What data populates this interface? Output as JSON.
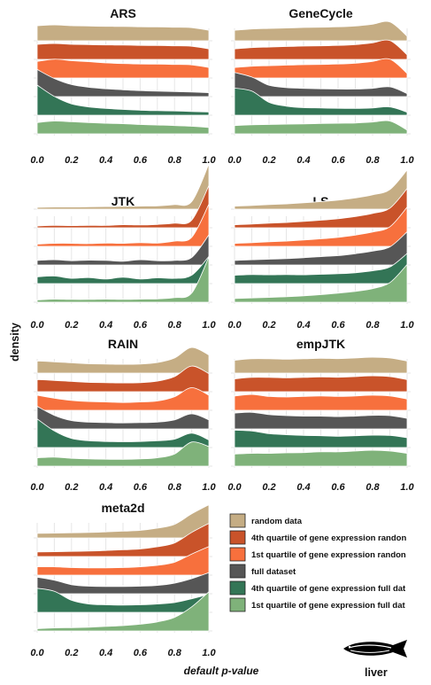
{
  "figure": {
    "ylabel": "density",
    "xlabel": "default p-value",
    "tissue": "liver",
    "icon": "fish-icon"
  },
  "legend": {
    "items": [
      {
        "label": "random data",
        "color": "#c5ad84"
      },
      {
        "label": "4th quartile of gene expression randon",
        "color": "#c9532a"
      },
      {
        "label": "1st quartile of gene expression randon",
        "color": "#f7703d"
      },
      {
        "label": "full dataset",
        "color": "#565656"
      },
      {
        "label": "4th quartile of gene expression full dat",
        "color": "#337556"
      },
      {
        "label": "1st quartile of gene expression full dat",
        "color": "#7fb27a"
      }
    ]
  },
  "chart_data": [
    {
      "type": "area",
      "title": "ARS",
      "x": [
        0,
        0.1,
        0.2,
        0.3,
        0.4,
        0.5,
        0.6,
        0.7,
        0.8,
        0.9,
        1.0
      ],
      "xticks": [
        "0.0",
        "0.2",
        "0.4",
        "0.6",
        "0.8",
        "1.0"
      ],
      "xlim": [
        0,
        1
      ],
      "series": [
        {
          "name": "random data",
          "values": [
            1.0,
            1.05,
            1.0,
            0.98,
            0.96,
            0.95,
            0.93,
            0.92,
            0.9,
            0.87,
            0.7
          ]
        },
        {
          "name": "4th quartile of gene expression randon",
          "values": [
            1.0,
            1.05,
            1.0,
            0.98,
            0.96,
            0.95,
            0.93,
            0.92,
            0.9,
            0.87,
            0.7
          ]
        },
        {
          "name": "1st quartile of gene expression randon",
          "values": [
            1.1,
            1.25,
            1.15,
            1.08,
            1.0,
            0.96,
            0.93,
            0.92,
            0.9,
            0.87,
            0.7
          ]
        },
        {
          "name": "full dataset",
          "values": [
            1.8,
            1.2,
            0.8,
            0.62,
            0.52,
            0.45,
            0.4,
            0.36,
            0.33,
            0.3,
            0.26
          ]
        },
        {
          "name": "4th quartile of gene expression full dat",
          "values": [
            2.0,
            1.25,
            0.75,
            0.55,
            0.45,
            0.38,
            0.33,
            0.3,
            0.28,
            0.25,
            0.22
          ]
        },
        {
          "name": "1st quartile of gene expression full dat",
          "values": [
            0.75,
            0.85,
            0.8,
            0.75,
            0.7,
            0.67,
            0.62,
            0.58,
            0.55,
            0.5,
            0.42
          ]
        }
      ]
    },
    {
      "type": "area",
      "title": "GeneCycle",
      "x": [
        0,
        0.1,
        0.2,
        0.3,
        0.4,
        0.5,
        0.6,
        0.7,
        0.8,
        0.9,
        1.0
      ],
      "xticks": [
        "0.0",
        "0.2",
        "0.4",
        "0.6",
        "0.8",
        "1.0"
      ],
      "xlim": [
        0,
        1
      ],
      "series": [
        {
          "name": "random data",
          "values": [
            0.7,
            0.78,
            0.82,
            0.85,
            0.88,
            0.9,
            0.93,
            0.98,
            1.1,
            1.25,
            0.3
          ]
        },
        {
          "name": "4th quartile of gene expression randon",
          "values": [
            0.7,
            0.78,
            0.82,
            0.85,
            0.88,
            0.9,
            0.93,
            0.98,
            1.1,
            1.25,
            0.3
          ]
        },
        {
          "name": "1st quartile of gene expression randon",
          "values": [
            0.7,
            0.78,
            0.82,
            0.85,
            0.88,
            0.9,
            0.93,
            0.98,
            1.1,
            1.25,
            0.3
          ]
        },
        {
          "name": "full dataset",
          "values": [
            1.6,
            1.3,
            0.75,
            0.6,
            0.55,
            0.52,
            0.5,
            0.5,
            0.55,
            0.65,
            0.2
          ]
        },
        {
          "name": "4th quartile of gene expression full dat",
          "values": [
            1.8,
            1.6,
            0.85,
            0.6,
            0.5,
            0.48,
            0.46,
            0.45,
            0.48,
            0.55,
            0.2
          ]
        },
        {
          "name": "1st quartile of gene expression full dat",
          "values": [
            0.55,
            0.6,
            0.62,
            0.64,
            0.66,
            0.68,
            0.7,
            0.72,
            0.78,
            0.85,
            0.25
          ]
        }
      ]
    },
    {
      "type": "area",
      "title": "JTK",
      "x": [
        0,
        0.1,
        0.2,
        0.3,
        0.4,
        0.5,
        0.6,
        0.7,
        0.8,
        0.9,
        1.0
      ],
      "xticks": [
        "0.0",
        "0.2",
        "0.4",
        "0.6",
        "0.8",
        "1.0"
      ],
      "xlim": [
        0,
        1
      ],
      "series": [
        {
          "name": "random data",
          "values": [
            0.12,
            0.14,
            0.14,
            0.16,
            0.17,
            0.18,
            0.2,
            0.22,
            0.3,
            0.5,
            3.0
          ]
        },
        {
          "name": "4th quartile of gene expression randon",
          "values": [
            0.12,
            0.15,
            0.14,
            0.16,
            0.15,
            0.2,
            0.18,
            0.22,
            0.3,
            0.5,
            2.8
          ]
        },
        {
          "name": "1st quartile of gene expression randon",
          "values": [
            0.15,
            0.2,
            0.2,
            0.18,
            0.22,
            0.2,
            0.25,
            0.22,
            0.35,
            0.6,
            2.8
          ]
        },
        {
          "name": "full dataset",
          "values": [
            0.3,
            0.35,
            0.28,
            0.32,
            0.3,
            0.25,
            0.35,
            0.28,
            0.3,
            0.5,
            2.0
          ]
        },
        {
          "name": "4th quartile of gene expression full dat",
          "values": [
            0.45,
            0.5,
            0.35,
            0.4,
            0.3,
            0.42,
            0.3,
            0.38,
            0.35,
            0.55,
            1.8
          ]
        },
        {
          "name": "1st quartile of gene expression full dat",
          "values": [
            0.15,
            0.2,
            0.18,
            0.18,
            0.2,
            0.18,
            0.2,
            0.22,
            0.3,
            0.6,
            3.0
          ]
        }
      ]
    },
    {
      "type": "area",
      "title": "LS",
      "x": [
        0,
        0.1,
        0.2,
        0.3,
        0.4,
        0.5,
        0.6,
        0.7,
        0.8,
        0.9,
        1.0
      ],
      "xticks": [
        "0.0",
        "0.2",
        "0.4",
        "0.6",
        "0.8",
        "1.0"
      ],
      "xlim": [
        0,
        1
      ],
      "series": [
        {
          "name": "random data",
          "values": [
            0.2,
            0.25,
            0.3,
            0.35,
            0.42,
            0.5,
            0.6,
            0.75,
            0.95,
            1.3,
            2.6
          ]
        },
        {
          "name": "4th quartile of gene expression randon",
          "values": [
            0.2,
            0.25,
            0.3,
            0.35,
            0.42,
            0.5,
            0.6,
            0.75,
            0.95,
            1.3,
            2.6
          ]
        },
        {
          "name": "1st quartile of gene expression randon",
          "values": [
            0.2,
            0.25,
            0.3,
            0.35,
            0.42,
            0.5,
            0.6,
            0.75,
            0.95,
            1.3,
            2.6
          ]
        },
        {
          "name": "full dataset",
          "values": [
            0.3,
            0.35,
            0.38,
            0.42,
            0.48,
            0.55,
            0.62,
            0.75,
            0.92,
            1.2,
            2.2
          ]
        },
        {
          "name": "4th quartile of gene expression full dat",
          "values": [
            0.55,
            0.6,
            0.58,
            0.6,
            0.58,
            0.62,
            0.65,
            0.72,
            0.85,
            1.1,
            2.0
          ]
        },
        {
          "name": "1st quartile of gene expression full dat",
          "values": [
            0.25,
            0.28,
            0.32,
            0.36,
            0.42,
            0.5,
            0.6,
            0.72,
            0.9,
            1.3,
            2.5
          ]
        }
      ]
    },
    {
      "type": "area",
      "title": "RAIN",
      "x": [
        0,
        0.1,
        0.2,
        0.3,
        0.4,
        0.5,
        0.6,
        0.7,
        0.8,
        0.9,
        1.0
      ],
      "xticks": [
        "0.0",
        "0.2",
        "0.4",
        "0.6",
        "0.8",
        "1.0"
      ],
      "xlim": [
        0,
        1
      ],
      "series": [
        {
          "name": "random data",
          "values": [
            0.8,
            0.75,
            0.68,
            0.62,
            0.6,
            0.58,
            0.6,
            0.7,
            1.0,
            1.7,
            1.2
          ]
        },
        {
          "name": "4th quartile of gene expression randon",
          "values": [
            0.8,
            0.75,
            0.68,
            0.62,
            0.6,
            0.58,
            0.6,
            0.7,
            1.0,
            1.7,
            1.2
          ]
        },
        {
          "name": "1st quartile of gene expression randon",
          "values": [
            1.0,
            0.8,
            0.65,
            0.58,
            0.55,
            0.52,
            0.55,
            0.62,
            0.9,
            1.5,
            1.0
          ]
        },
        {
          "name": "full dataset",
          "values": [
            1.5,
            0.9,
            0.55,
            0.45,
            0.42,
            0.4,
            0.42,
            0.45,
            0.6,
            1.0,
            0.6
          ]
        },
        {
          "name": "4th quartile of gene expression full dat",
          "values": [
            1.9,
            1.1,
            0.6,
            0.45,
            0.4,
            0.38,
            0.4,
            0.45,
            0.55,
            0.95,
            0.5
          ]
        },
        {
          "name": "1st quartile of gene expression full dat",
          "values": [
            0.55,
            0.6,
            0.52,
            0.48,
            0.46,
            0.45,
            0.48,
            0.55,
            0.8,
            1.6,
            1.3
          ]
        }
      ]
    },
    {
      "type": "area",
      "title": "empJTK",
      "x": [
        0,
        0.1,
        0.2,
        0.3,
        0.4,
        0.5,
        0.6,
        0.7,
        0.8,
        0.9,
        1.0
      ],
      "xticks": [
        "0.0",
        "0.2",
        "0.4",
        "0.6",
        "0.8",
        "1.0"
      ],
      "xlim": [
        0,
        1
      ],
      "series": [
        {
          "name": "random data",
          "values": [
            0.85,
            0.95,
            0.95,
            0.92,
            0.95,
            0.98,
            0.96,
            1.0,
            1.05,
            1.0,
            0.8
          ]
        },
        {
          "name": "4th quartile of gene expression randon",
          "values": [
            0.85,
            0.95,
            0.95,
            0.92,
            0.95,
            0.98,
            0.96,
            1.0,
            1.05,
            1.0,
            0.8
          ]
        },
        {
          "name": "1st quartile of gene expression randon",
          "values": [
            0.95,
            1.05,
            0.92,
            0.88,
            0.92,
            0.95,
            0.92,
            0.95,
            1.0,
            0.95,
            0.75
          ]
        },
        {
          "name": "full dataset",
          "values": [
            1.05,
            1.1,
            0.95,
            0.88,
            0.85,
            0.85,
            0.82,
            0.85,
            0.9,
            0.88,
            0.7
          ]
        },
        {
          "name": "4th quartile of gene expression full dat",
          "values": [
            1.15,
            1.1,
            0.92,
            0.85,
            0.8,
            0.78,
            0.75,
            0.78,
            0.82,
            0.8,
            0.65
          ]
        },
        {
          "name": "1st quartile of gene expression full dat",
          "values": [
            0.8,
            0.85,
            0.85,
            0.88,
            0.9,
            0.95,
            0.95,
            1.0,
            1.05,
            1.0,
            0.85
          ]
        }
      ]
    },
    {
      "type": "area",
      "title": "meta2d",
      "x": [
        0,
        0.1,
        0.2,
        0.3,
        0.4,
        0.5,
        0.6,
        0.7,
        0.8,
        0.9,
        1.0
      ],
      "xticks": [
        "0.0",
        "0.2",
        "0.4",
        "0.6",
        "0.8",
        "1.0"
      ],
      "xlim": [
        0,
        1
      ],
      "series": [
        {
          "name": "random data",
          "values": [
            0.3,
            0.32,
            0.34,
            0.36,
            0.4,
            0.45,
            0.5,
            0.65,
            0.9,
            1.6,
            2.2
          ]
        },
        {
          "name": "4th quartile of gene expression randon",
          "values": [
            0.3,
            0.32,
            0.34,
            0.36,
            0.4,
            0.45,
            0.5,
            0.65,
            0.9,
            1.6,
            2.2
          ]
        },
        {
          "name": "1st quartile of gene expression randon",
          "values": [
            0.55,
            0.55,
            0.5,
            0.48,
            0.48,
            0.5,
            0.55,
            0.65,
            0.85,
            1.4,
            1.9
          ]
        },
        {
          "name": "full dataset",
          "values": [
            1.1,
            0.9,
            0.6,
            0.5,
            0.48,
            0.48,
            0.5,
            0.55,
            0.7,
            1.0,
            1.4
          ]
        },
        {
          "name": "4th quartile of gene expression full dat",
          "values": [
            1.6,
            1.4,
            0.8,
            0.55,
            0.5,
            0.48,
            0.5,
            0.55,
            0.65,
            0.9,
            1.2
          ]
        },
        {
          "name": "1st quartile of gene expression full dat",
          "values": [
            0.15,
            0.2,
            0.22,
            0.25,
            0.3,
            0.35,
            0.45,
            0.6,
            0.9,
            1.6,
            2.6
          ]
        }
      ]
    }
  ]
}
